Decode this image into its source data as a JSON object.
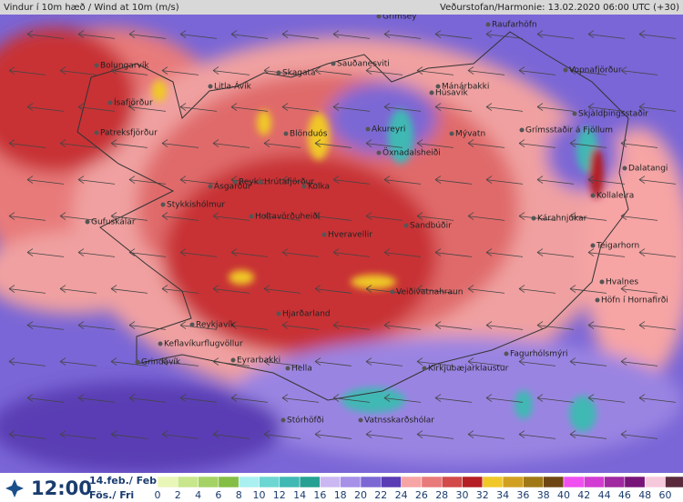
{
  "header": {
    "title": "Vindur í 10m hæð / Wind at 10m (m/s)",
    "source": "Veðurstofan/Harmonie: 13.02.2020 06:00 UTC (+30)"
  },
  "stations": [
    "Grímsey",
    "Raufarhöfn",
    "Bolungarvík",
    "Skagatá",
    "Sauðanesviti",
    "Mánárbakki",
    "Vopnafjörður",
    "Litla-Ávík",
    "Ísafjörður",
    "Húsavík",
    "Patreksfjörður",
    "Blönduós",
    "Akureyri",
    "Mývatn",
    "Grímsstaðir á Fjöllum",
    "Skjaldþingsstaðir",
    "Dalatangi",
    "Kollaleira",
    "Öxnadalsheiði",
    "Ásgarður",
    "Reykir",
    "Hrútafjörður",
    "Kolka",
    "Stykkishólmur",
    "Gufuskálar",
    "Holtavörðuheiði",
    "Sandbúðir",
    "Hveravellir",
    "Kárahnjúkar",
    "Teigarhorn",
    "Hvalnes",
    "Höfn í Hornafirði",
    "Veiðivatnahraun",
    "Hjarðarland",
    "Reykjavík",
    "Keflavíkurflugvöllur",
    "Grindavík",
    "Eyrarbakki",
    "Hella",
    "Kirkjubæjarklaustur",
    "Fagurhólsmýri",
    "Vatnsskarðshólar",
    "Stórhöfði"
  ],
  "footer": {
    "time": "12:00",
    "date": "14.feb./ Feb",
    "day": "Fös./ Fri"
  },
  "legend": {
    "ticks": [
      0,
      2,
      4,
      6,
      8,
      10,
      12,
      14,
      16,
      18,
      20,
      22,
      24,
      26,
      28,
      30,
      32,
      34,
      36,
      38,
      40,
      42,
      44,
      46,
      48,
      60
    ],
    "colors": [
      "#e8f6b8",
      "#c8e68c",
      "#a4d264",
      "#84be44",
      "#aaf0f0",
      "#6cd6d2",
      "#40b8b4",
      "#26a092",
      "#cbb8f2",
      "#a690e8",
      "#7c68d4",
      "#5a3cb4",
      "#f6a4a4",
      "#e87a7a",
      "#d24a4a",
      "#b41e24",
      "#f0c828",
      "#d2a020",
      "#a07816",
      "#6e4614",
      "#f050f0",
      "#d23cd2",
      "#a028a0",
      "#781478",
      "#f6c8dc",
      "#5a2a3c"
    ]
  }
}
